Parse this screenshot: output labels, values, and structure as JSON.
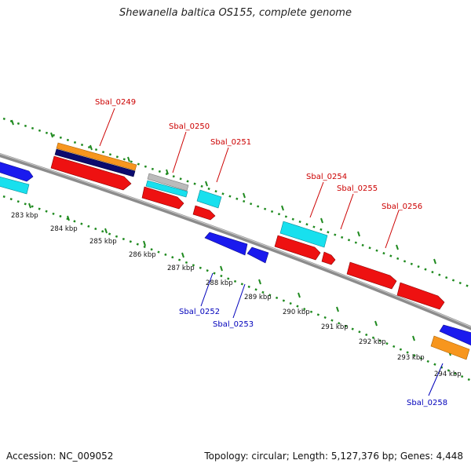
{
  "title": "Shewanella baltica OS155, complete genome",
  "footer": {
    "accession": "Accession: NC_009052",
    "summary": "Topology: circular; Length: 5,127,376 bp; Genes: 4,448"
  },
  "colors": {
    "backbone": "#8c8c8c",
    "tick": "#1f8a1f",
    "label_plus": "#cc0000",
    "label_minus": "#0000bb"
  },
  "scale_labels": [
    "283 kbp",
    "284 kbp",
    "285 kbp",
    "286 kbp",
    "287 kbp",
    "288 kbp",
    "289 kbp",
    "290 kbp",
    "291 kbp",
    "292 kbp",
    "293 kbp",
    "294 kbp"
  ],
  "gene_labels": [
    {
      "text": "Sbal_0249",
      "strand": "plus"
    },
    {
      "text": "Sbal_0250",
      "strand": "plus"
    },
    {
      "text": "Sbal_0251",
      "strand": "plus"
    },
    {
      "text": "Sbal_0254",
      "strand": "plus"
    },
    {
      "text": "Sbal_0255",
      "strand": "plus"
    },
    {
      "text": "Sbal_0256",
      "strand": "plus"
    },
    {
      "text": "Sbal_0252",
      "strand": "minus"
    },
    {
      "text": "Sbal_0253",
      "strand": "minus"
    },
    {
      "text": "Sbal_0258",
      "strand": "minus"
    }
  ],
  "features": [
    {
      "id": "f-blue-left",
      "color": "#1a1aee"
    },
    {
      "id": "f-cyan-left",
      "color": "#18e0ee"
    },
    {
      "id": "f-orange-0249",
      "color": "#f7961e"
    },
    {
      "id": "f-navy-0249",
      "color": "#0b0b6e"
    },
    {
      "id": "f-red-0249",
      "color": "#ee1111"
    },
    {
      "id": "f-gray-0250",
      "color": "#bbbbbb"
    },
    {
      "id": "f-cyan-0250",
      "color": "#18e0ee"
    },
    {
      "id": "f-red-0250",
      "color": "#ee1111"
    },
    {
      "id": "f-cyan-0251",
      "color": "#18e0ee"
    },
    {
      "id": "f-red-0251",
      "color": "#ee1111"
    },
    {
      "id": "f-blue-0252",
      "color": "#1a1aee"
    },
    {
      "id": "f-blue-0253",
      "color": "#1a1aee"
    },
    {
      "id": "f-cyan-0254",
      "color": "#18e0ee"
    },
    {
      "id": "f-red-0254",
      "color": "#ee1111"
    },
    {
      "id": "f-red-0255",
      "color": "#ee1111"
    },
    {
      "id": "f-red-0256a",
      "color": "#ee1111"
    },
    {
      "id": "f-red-0256b",
      "color": "#ee1111"
    },
    {
      "id": "f-blue-0258",
      "color": "#1a1aee"
    },
    {
      "id": "f-orange-0258",
      "color": "#f7961e"
    }
  ]
}
